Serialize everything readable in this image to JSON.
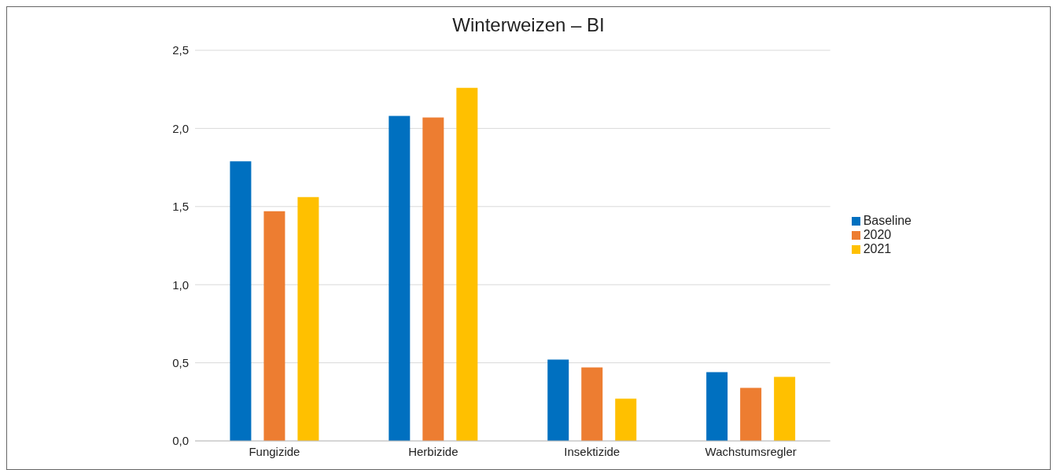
{
  "chart_data": {
    "type": "bar",
    "title": "Winterweizen – BI",
    "categories": [
      "Fungizide",
      "Herbizide",
      "Insektizide",
      "Wachstumsregler"
    ],
    "series": [
      {
        "name": "Baseline",
        "color": "#0070c0",
        "values": [
          1.79,
          2.08,
          0.52,
          0.44
        ]
      },
      {
        "name": "2020",
        "color": "#ed7d31",
        "values": [
          1.47,
          2.07,
          0.47,
          0.34
        ]
      },
      {
        "name": "2021",
        "color": "#ffc000",
        "values": [
          1.56,
          2.26,
          0.27,
          0.41
        ]
      }
    ],
    "ylim": [
      0,
      2.5
    ],
    "yticks": [
      {
        "value": 0,
        "label": "0,0"
      },
      {
        "value": 0.5,
        "label": "0,5"
      },
      {
        "value": 1,
        "label": "1,0"
      },
      {
        "value": 1.5,
        "label": "1,5"
      },
      {
        "value": 2,
        "label": "2,0"
      },
      {
        "value": 2.5,
        "label": "2,5"
      }
    ],
    "grid": "y",
    "legend": "right"
  }
}
